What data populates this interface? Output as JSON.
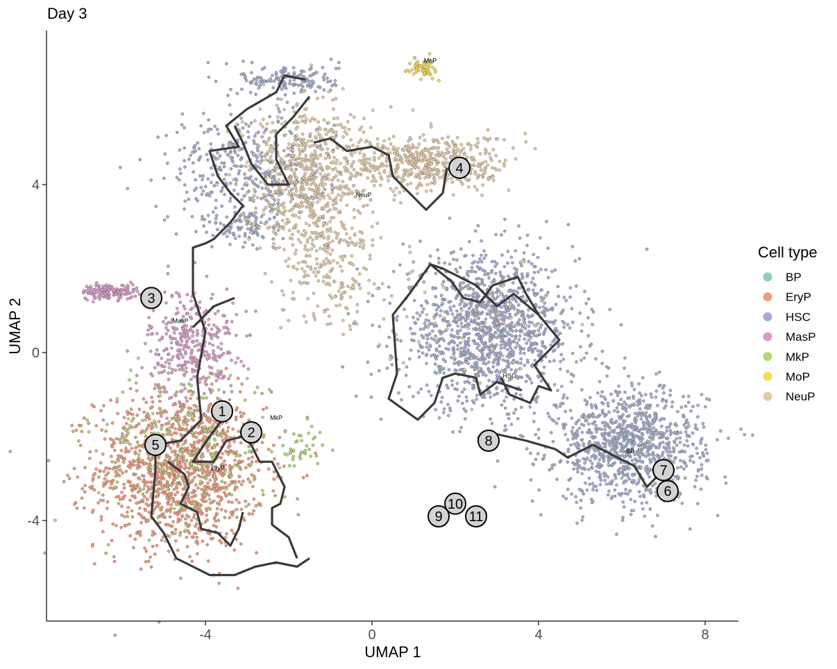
{
  "chart_data": {
    "type": "scatter",
    "title": "Day 3",
    "xlabel": "UMAP 1",
    "ylabel": "UMAP 2",
    "xlim": [
      -7.8,
      8.8
    ],
    "ylim": [
      -6.4,
      7.6
    ],
    "x_ticks": [
      -4,
      0,
      4,
      8
    ],
    "y_ticks": [
      -4,
      0,
      4
    ],
    "x_tick_labels": [
      "-4",
      "0",
      "4",
      "8"
    ],
    "y_tick_labels": [
      "-4",
      "0",
      "4"
    ],
    "grid": false,
    "legend": {
      "title": "Cell type",
      "placement": "right",
      "entries": [
        {
          "label": "BP",
          "color": "#93cdb4"
        },
        {
          "label": "EryP",
          "color": "#ee9c7c"
        },
        {
          "label": "HSC",
          "color": "#a3adcf"
        },
        {
          "label": "MasP",
          "color": "#d99bc9"
        },
        {
          "label": "MkP",
          "color": "#b3d87a"
        },
        {
          "label": "MoP",
          "color": "#f7da57"
        },
        {
          "label": "NeuP",
          "color": "#e2c9a6"
        }
      ]
    },
    "cell_type_clouds": [
      {
        "type": "EryP",
        "regions": [
          {
            "x": -4.6,
            "y": -2.8,
            "sx": 1.35,
            "sy": 1.25,
            "n": 1300
          }
        ]
      },
      {
        "type": "MkP",
        "regions": [
          {
            "x": -4.5,
            "y": -2.2,
            "sx": 1.4,
            "sy": 1.3,
            "n": 220
          },
          {
            "x": -1.7,
            "y": -2.3,
            "sx": 0.35,
            "sy": 0.4,
            "n": 40
          }
        ]
      },
      {
        "type": "MasP",
        "regions": [
          {
            "x": -6.3,
            "y": 1.45,
            "sx": 0.45,
            "sy": 0.12,
            "n": 140
          },
          {
            "x": -4.3,
            "y": 0.2,
            "sx": 0.7,
            "sy": 0.9,
            "n": 360
          }
        ]
      },
      {
        "type": "HSC",
        "regions": [
          {
            "x": 2.8,
            "y": 0.5,
            "sx": 1.4,
            "sy": 1.2,
            "n": 1300
          },
          {
            "x": 6.2,
            "y": -2.2,
            "sx": 1.2,
            "sy": 0.9,
            "n": 1000
          },
          {
            "x": -3.0,
            "y": 4.4,
            "sx": 1.3,
            "sy": 0.9,
            "n": 380
          },
          {
            "x": -2.0,
            "y": 6.5,
            "sx": 0.8,
            "sy": 0.25,
            "n": 150
          },
          {
            "x": -3.0,
            "y": 3.0,
            "sx": 0.6,
            "sy": 0.3,
            "n": 90
          }
        ]
      },
      {
        "type": "NeuP",
        "regions": [
          {
            "x": -1.6,
            "y": 4.2,
            "sx": 1.0,
            "sy": 1.2,
            "n": 700
          },
          {
            "x": 1.4,
            "y": 4.5,
            "sx": 1.3,
            "sy": 0.45,
            "n": 500
          },
          {
            "x": -1.0,
            "y": 2.0,
            "sx": 0.8,
            "sy": 1.0,
            "n": 200
          },
          {
            "x": 2.5,
            "y": 0.8,
            "sx": 1.3,
            "sy": 1.0,
            "n": 60
          }
        ]
      },
      {
        "type": "MoP",
        "regions": [
          {
            "x": 1.2,
            "y": 6.8,
            "sx": 0.2,
            "sy": 0.15,
            "n": 60
          }
        ]
      },
      {
        "type": "BP",
        "regions": [
          {
            "x": 6.0,
            "y": -2.6,
            "sx": 0.8,
            "sy": 0.6,
            "n": 30
          }
        ]
      }
    ],
    "trajectory": [
      [
        [
          -1.6,
          6.5
        ],
        [
          -2.1,
          6.6
        ],
        [
          -2.3,
          6.2
        ],
        [
          -3.0,
          5.8
        ],
        [
          -3.5,
          5.4
        ],
        [
          -3.2,
          4.9
        ],
        [
          -3.9,
          4.8
        ],
        [
          -3.7,
          4.2
        ],
        [
          -3.4,
          3.8
        ],
        [
          -3.1,
          3.5
        ],
        [
          -3.4,
          3.1
        ],
        [
          -3.8,
          2.7
        ],
        [
          -4.0,
          2.6
        ],
        [
          -4.3,
          2.5
        ],
        [
          -4.3,
          1.4
        ],
        [
          -4.0,
          0.5
        ],
        [
          -4.2,
          -0.6
        ],
        [
          -4.1,
          -1.6
        ],
        [
          -4.6,
          -2.1
        ],
        [
          -5.2,
          -2.2
        ],
        [
          -5.2,
          -2.8
        ],
        [
          -5.3,
          -3.9
        ],
        [
          -5.0,
          -4.3
        ],
        [
          -4.7,
          -4.9
        ],
        [
          -4.3,
          -5.1
        ],
        [
          -3.9,
          -5.3
        ],
        [
          -3.3,
          -5.3
        ],
        [
          -2.8,
          -5.1
        ],
        [
          -2.3,
          -5.0
        ],
        [
          -1.8,
          -5.1
        ],
        [
          -1.5,
          -4.9
        ]
      ],
      [
        [
          -1.5,
          6.1
        ],
        [
          -1.9,
          5.6
        ],
        [
          -2.3,
          5.2
        ],
        [
          -2.3,
          4.6
        ],
        [
          -2.0,
          4.0
        ],
        [
          -2.5,
          4.0
        ],
        [
          -2.9,
          4.5
        ],
        [
          -3.1,
          5.0
        ],
        [
          -3.3,
          5.4
        ]
      ],
      [
        [
          -3.3,
          1.3
        ],
        [
          -3.8,
          1.1
        ],
        [
          -4.3,
          0.6
        ]
      ],
      [
        [
          -1.4,
          5.0
        ],
        [
          -1.0,
          5.1
        ],
        [
          -0.6,
          4.8
        ],
        [
          0.0,
          4.9
        ],
        [
          0.4,
          4.7
        ],
        [
          0.5,
          4.2
        ],
        [
          0.8,
          3.9
        ],
        [
          1.2,
          3.5
        ],
        [
          1.3,
          3.4
        ],
        [
          1.7,
          3.8
        ],
        [
          1.8,
          4.4
        ]
      ],
      [
        [
          -3.4,
          -1.3
        ],
        [
          -3.6,
          -1.6
        ],
        [
          -3.9,
          -2.0
        ],
        [
          -4.3,
          -2.6
        ],
        [
          -3.8,
          -2.6
        ],
        [
          -3.5,
          -2.1
        ],
        [
          -3.1,
          -2.0
        ],
        [
          -2.9,
          -2.2
        ],
        [
          -2.7,
          -2.6
        ],
        [
          -2.4,
          -2.6
        ],
        [
          -2.2,
          -3.0
        ],
        [
          -2.1,
          -3.2
        ],
        [
          -2.2,
          -3.6
        ],
        [
          -2.4,
          -3.7
        ],
        [
          -2.4,
          -4.1
        ],
        [
          -2.0,
          -4.4
        ],
        [
          -1.8,
          -4.9
        ]
      ],
      [
        [
          -4.9,
          -2.6
        ],
        [
          -4.5,
          -2.9
        ],
        [
          -4.4,
          -3.2
        ],
        [
          -4.6,
          -3.6
        ],
        [
          -4.2,
          -3.8
        ],
        [
          -4.1,
          -4.2
        ],
        [
          -3.7,
          -4.3
        ],
        [
          -3.4,
          -4.6
        ],
        [
          -3.2,
          -4.2
        ],
        [
          -3.1,
          -3.8
        ]
      ],
      [
        [
          2.8,
          -1.9
        ],
        [
          3.7,
          -2.1
        ],
        [
          4.4,
          -2.3
        ],
        [
          4.7,
          -2.5
        ],
        [
          5.3,
          -2.2
        ],
        [
          5.9,
          -2.5
        ],
        [
          6.3,
          -2.7
        ],
        [
          6.6,
          -3.2
        ],
        [
          6.9,
          -2.9
        ],
        [
          7.0,
          -2.7
        ]
      ],
      [
        [
          3.1,
          -0.6
        ],
        [
          3.3,
          -1.0
        ],
        [
          3.8,
          -1.2
        ],
        [
          4.0,
          -0.8
        ],
        [
          4.3,
          -0.9
        ],
        [
          3.9,
          -0.3
        ],
        [
          4.5,
          0.3
        ],
        [
          4.0,
          0.9
        ],
        [
          3.4,
          1.4
        ],
        [
          3.0,
          1.1
        ],
        [
          2.5,
          1.6
        ],
        [
          1.7,
          2.0
        ],
        [
          1.4,
          2.1
        ],
        [
          0.9,
          1.4
        ],
        [
          0.5,
          0.9
        ],
        [
          0.6,
          -0.5
        ],
        [
          0.4,
          -1.1
        ],
        [
          1.1,
          -1.6
        ],
        [
          1.5,
          -1.2
        ],
        [
          1.7,
          -0.6
        ],
        [
          2.0,
          -0.5
        ],
        [
          2.5,
          -0.6
        ],
        [
          2.6,
          -1.0
        ],
        [
          3.0,
          -0.7
        ],
        [
          3.6,
          -0.9
        ]
      ],
      [
        [
          1.4,
          2.1
        ],
        [
          1.9,
          1.7
        ],
        [
          2.2,
          1.3
        ],
        [
          2.6,
          1.2
        ],
        [
          2.9,
          1.6
        ],
        [
          3.5,
          1.8
        ],
        [
          3.7,
          1.4
        ],
        [
          4.0,
          0.9
        ]
      ]
    ],
    "nodes": [
      {
        "label": "1",
        "x": -3.6,
        "y": -1.4
      },
      {
        "label": "2",
        "x": -2.9,
        "y": -1.9
      },
      {
        "label": "3",
        "x": -5.3,
        "y": 1.3
      },
      {
        "label": "4",
        "x": 2.1,
        "y": 4.4
      },
      {
        "label": "5",
        "x": -5.2,
        "y": -2.2
      },
      {
        "label": "6",
        "x": 7.1,
        "y": -3.3
      },
      {
        "label": "7",
        "x": 7.0,
        "y": -2.8
      },
      {
        "label": "8",
        "x": 2.8,
        "y": -2.1
      },
      {
        "label": "9",
        "x": 1.6,
        "y": -3.9
      },
      {
        "label": "10",
        "x": 2.0,
        "y": -3.6
      },
      {
        "label": "11",
        "x": 2.5,
        "y": -3.9
      }
    ],
    "cluster_labels": [
      {
        "text": "MoP",
        "x": 1.4,
        "y": 6.9
      },
      {
        "text": "NeuP",
        "x": -0.2,
        "y": 3.7
      },
      {
        "text": "MasP",
        "x": -4.6,
        "y": 0.7
      },
      {
        "text": "MkP",
        "x": -2.3,
        "y": -1.6
      },
      {
        "text": "EryP",
        "x": -3.7,
        "y": -2.8
      },
      {
        "text": "HSC",
        "x": 3.3,
        "y": -0.6
      },
      {
        "text": "BP",
        "x": 6.2,
        "y": -2.4
      }
    ]
  }
}
